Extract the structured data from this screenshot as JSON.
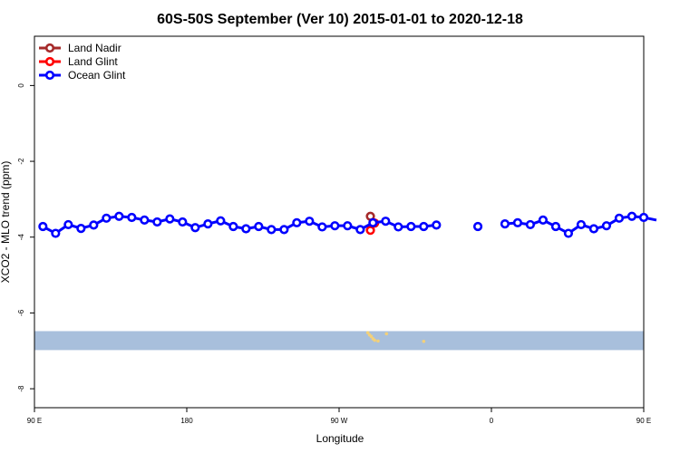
{
  "chart_data": {
    "type": "line",
    "title": "60S-50S September (Ver 10)   2015-01-01 to 2020-12-18",
    "xlabel": "Longitude",
    "ylabel": "XCO2 - MLO trend (ppm)",
    "xlim": [
      90,
      450
    ],
    "ylim": [
      -8.5,
      1.3
    ],
    "x_ticks": [
      {
        "value": 90,
        "label": "90 E"
      },
      {
        "value": 180,
        "label": "180"
      },
      {
        "value": 270,
        "label": "90 W"
      },
      {
        "value": 360,
        "label": "0"
      },
      {
        "value": 450,
        "label": "90 E"
      },
      {
        "value": 540,
        "label": "180"
      }
    ],
    "y_ticks": [
      {
        "value": 0,
        "label": "0"
      },
      {
        "value": -2,
        "label": "-2"
      },
      {
        "value": -4,
        "label": "-4"
      },
      {
        "value": -6,
        "label": "-6"
      },
      {
        "value": -8,
        "label": "-8"
      }
    ],
    "legend_position": "top-left",
    "grid": false,
    "series": [
      {
        "name": "Land Nadir",
        "color": "#a52a2a",
        "points": [
          [
            288.5,
            -3.45
          ]
        ]
      },
      {
        "name": "Land Glint",
        "color": "#ff0000",
        "points": [
          [
            288.5,
            -3.82
          ],
          [
            291,
            -3.63
          ]
        ]
      },
      {
        "name": "Ocean Glint",
        "color": "#0000ff",
        "points": [
          [
            95,
            -3.72
          ],
          [
            102.5,
            -3.9
          ],
          [
            110,
            -3.67
          ],
          [
            117.5,
            -3.77
          ],
          [
            125,
            -3.68
          ],
          [
            132.5,
            -3.5
          ],
          [
            140,
            -3.45
          ],
          [
            147.5,
            -3.48
          ],
          [
            155,
            -3.55
          ],
          [
            162.5,
            -3.6
          ],
          [
            170,
            -3.52
          ],
          [
            177.5,
            -3.6
          ],
          [
            185,
            -3.75
          ],
          [
            192.5,
            -3.65
          ],
          [
            200,
            -3.57
          ],
          [
            207.5,
            -3.72
          ],
          [
            215,
            -3.78
          ],
          [
            222.5,
            -3.72
          ],
          [
            230,
            -3.8
          ],
          [
            237.5,
            -3.8
          ],
          [
            245,
            -3.62
          ],
          [
            252.5,
            -3.58
          ],
          [
            260,
            -3.73
          ],
          [
            267.5,
            -3.7
          ],
          [
            275,
            -3.7
          ],
          [
            282.5,
            -3.8
          ],
          [
            290,
            -3.62
          ],
          [
            297.5,
            -3.58
          ],
          [
            305,
            -3.73
          ],
          [
            312.5,
            -3.72
          ],
          [
            320,
            -3.72
          ],
          [
            327.5,
            -3.68
          ]
        ],
        "isolated": [
          [
            352,
            -3.72
          ]
        ],
        "points2": [
          [
            368,
            -3.65
          ],
          [
            375.5,
            -3.62
          ],
          [
            383,
            -3.67
          ],
          [
            390.5,
            -3.55
          ],
          [
            398,
            -3.72
          ],
          [
            405.5,
            -3.9
          ],
          [
            413,
            -3.67
          ],
          [
            420.5,
            -3.78
          ],
          [
            428,
            -3.7
          ],
          [
            435.5,
            -3.5
          ],
          [
            443,
            -3.45
          ],
          [
            450,
            -3.48
          ],
          [
            457.5,
            -3.55
          ]
        ]
      }
    ],
    "band": {
      "y_from": -6.48,
      "y_to": -6.98,
      "color": "#a8bfdc"
    },
    "land_color": "#f2d07a"
  }
}
